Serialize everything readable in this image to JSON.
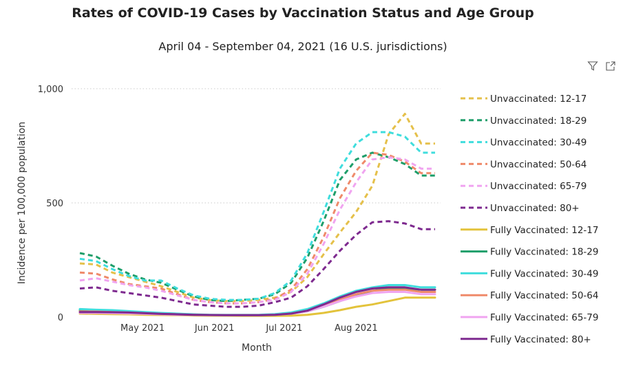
{
  "header": {
    "title": "Rates of COVID-19 Cases by Vaccination Status and Age Group",
    "subtitle": "April 04 - September 04, 2021 (16 U.S. jurisdictions)"
  },
  "toolbar": {
    "filter_icon": "filter-icon",
    "expand_icon": "focus-mode-icon"
  },
  "chart_data": {
    "type": "line",
    "title": "Rates of COVID-19 Cases by Vaccination Status and Age Group",
    "subtitle": "April 04 - September 04, 2021 (16 U.S. jurisdictions)",
    "xlabel": "Month",
    "ylabel": "Incidence per 100,000 population",
    "ylim": [
      0,
      1000
    ],
    "yticks": [
      0,
      500,
      1000
    ],
    "ytick_labels": [
      "0",
      "500",
      "1,000"
    ],
    "x_tick_labels": [
      "May 2021",
      "Jun 2021",
      "Jul 2021",
      "Aug 2021"
    ],
    "x_tick_dates": [
      "2021-05-01",
      "2021-06-01",
      "2021-07-01",
      "2021-08-01"
    ],
    "x": [
      "2021-04-04",
      "2021-04-11",
      "2021-04-18",
      "2021-04-25",
      "2021-05-02",
      "2021-05-09",
      "2021-05-16",
      "2021-05-23",
      "2021-05-30",
      "2021-06-06",
      "2021-06-13",
      "2021-06-20",
      "2021-06-27",
      "2021-07-04",
      "2021-07-11",
      "2021-07-18",
      "2021-07-25",
      "2021-08-01",
      "2021-08-08",
      "2021-08-15",
      "2021-08-22",
      "2021-08-29",
      "2021-09-04"
    ],
    "grid": "horizontal dotted",
    "legend_position": "right",
    "series": [
      {
        "name": "Unvaccinated: 12-17",
        "color": "#E5C04A",
        "dash": true,
        "values": [
          235,
          230,
          195,
          175,
          155,
          135,
          110,
          85,
          75,
          70,
          70,
          75,
          85,
          110,
          175,
          275,
          370,
          460,
          575,
          800,
          890,
          760,
          760
        ]
      },
      {
        "name": "Unvaccinated: 18-29",
        "color": "#1E9E6A",
        "dash": true,
        "values": [
          280,
          265,
          225,
          190,
          165,
          150,
          120,
          90,
          75,
          70,
          75,
          80,
          100,
          150,
          260,
          420,
          600,
          690,
          720,
          700,
          670,
          620,
          620
        ]
      },
      {
        "name": "Unvaccinated: 30-49",
        "color": "#3FDDDD",
        "dash": true,
        "values": [
          255,
          245,
          210,
          180,
          160,
          160,
          125,
          95,
          80,
          75,
          75,
          80,
          105,
          160,
          280,
          460,
          650,
          760,
          810,
          810,
          790,
          720,
          720
        ]
      },
      {
        "name": "Unvaccinated: 50-64",
        "color": "#EF8A6A",
        "dash": true,
        "values": [
          195,
          190,
          165,
          145,
          135,
          125,
          100,
          75,
          65,
          60,
          60,
          65,
          80,
          120,
          210,
          350,
          520,
          640,
          720,
          710,
          680,
          630,
          630
        ]
      },
      {
        "name": "Unvaccinated: 65-79",
        "color": "#F0A4F0",
        "dash": true,
        "values": [
          160,
          170,
          155,
          140,
          130,
          115,
          95,
          75,
          65,
          60,
          60,
          65,
          75,
          110,
          190,
          320,
          470,
          590,
          690,
          700,
          690,
          650,
          650
        ]
      },
      {
        "name": "Unvaccinated: 80+",
        "color": "#7E2A8F",
        "dash": true,
        "values": [
          125,
          130,
          115,
          105,
          95,
          85,
          70,
          55,
          50,
          45,
          45,
          50,
          65,
          85,
          135,
          210,
          290,
          360,
          415,
          420,
          410,
          385,
          385
        ]
      },
      {
        "name": "Fully Vaccinated: 12-17",
        "color": "#E3C33B",
        "dash": false,
        "values": [
          15,
          14,
          13,
          12,
          10,
          9,
          8,
          7,
          6,
          6,
          5,
          5,
          5,
          6,
          10,
          18,
          30,
          45,
          55,
          70,
          85,
          85,
          85
        ]
      },
      {
        "name": "Fully Vaccinated: 18-29",
        "color": "#1E9E6A",
        "dash": false,
        "values": [
          30,
          28,
          25,
          22,
          18,
          15,
          12,
          10,
          9,
          8,
          8,
          8,
          10,
          15,
          25,
          45,
          70,
          95,
          115,
          125,
          125,
          120,
          120
        ]
      },
      {
        "name": "Fully Vaccinated: 30-49",
        "color": "#3FDDDD",
        "dash": false,
        "values": [
          35,
          32,
          30,
          26,
          22,
          18,
          15,
          12,
          10,
          10,
          10,
          10,
          13,
          20,
          35,
          60,
          90,
          115,
          130,
          140,
          140,
          130,
          130
        ]
      },
      {
        "name": "Fully Vaccinated: 50-64",
        "color": "#EF8A6A",
        "dash": false,
        "values": [
          25,
          24,
          22,
          20,
          17,
          14,
          12,
          10,
          9,
          8,
          8,
          8,
          10,
          15,
          28,
          50,
          75,
          100,
          115,
          120,
          120,
          110,
          110
        ]
      },
      {
        "name": "Fully Vaccinated: 65-79",
        "color": "#F0A4F0",
        "dash": false,
        "values": [
          18,
          18,
          17,
          16,
          14,
          12,
          10,
          9,
          8,
          8,
          8,
          8,
          10,
          14,
          25,
          45,
          70,
          90,
          105,
          110,
          110,
          100,
          100
        ]
      },
      {
        "name": "Fully Vaccinated: 80+",
        "color": "#7E2A8F",
        "dash": false,
        "values": [
          22,
          22,
          21,
          20,
          17,
          14,
          12,
          10,
          9,
          8,
          8,
          8,
          10,
          15,
          28,
          55,
          85,
          110,
          125,
          130,
          130,
          120,
          120
        ]
      }
    ]
  }
}
